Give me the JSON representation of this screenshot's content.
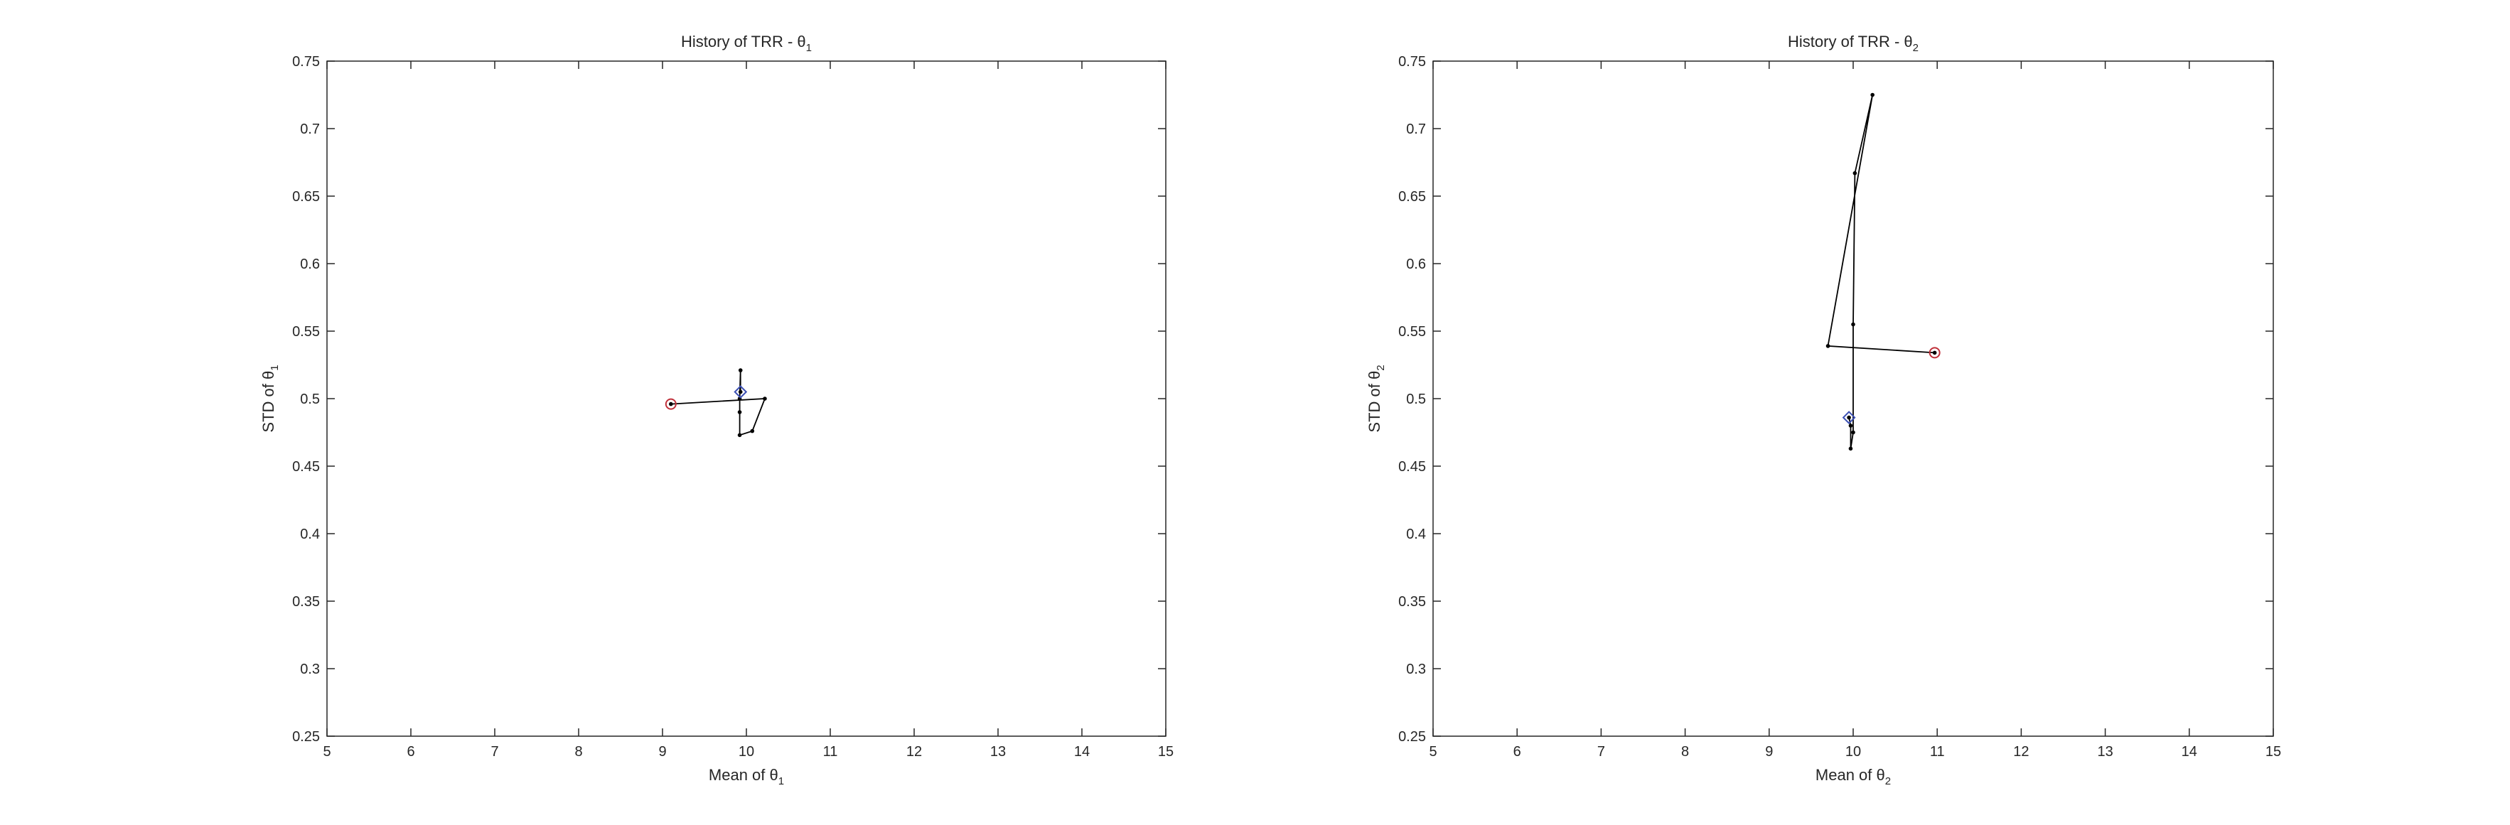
{
  "chart_data": [
    {
      "type": "line",
      "title": "History of TRR - θ",
      "title_subscript": "1",
      "xlabel": "Mean of θ",
      "xlabel_subscript": "1",
      "ylabel": "STD of θ",
      "ylabel_subscript": "1",
      "xlim": [
        5,
        15
      ],
      "ylim": [
        0.25,
        0.75
      ],
      "xticks": [
        5,
        6,
        7,
        8,
        9,
        10,
        11,
        12,
        13,
        14,
        15
      ],
      "yticks": [
        0.25,
        0.3,
        0.35,
        0.4,
        0.45,
        0.5,
        0.55,
        0.6,
        0.65,
        0.7,
        0.75
      ],
      "xtick_labels": [
        "5",
        "6",
        "7",
        "8",
        "9",
        "10",
        "11",
        "12",
        "13",
        "14",
        "15"
      ],
      "ytick_labels": [
        "0.25",
        "0.3",
        "0.35",
        "0.4",
        "0.45",
        "0.5",
        "0.55",
        "0.6",
        "0.65",
        "0.7",
        "0.75"
      ],
      "grid": false,
      "series": [
        {
          "x": [
            9.1,
            10.22,
            10.07,
            9.92,
            9.92,
            9.92,
            9.93,
            9.93
          ],
          "y": [
            0.496,
            0.5,
            0.476,
            0.473,
            0.49,
            0.5,
            0.521,
            0.505
          ],
          "color": "#000000"
        }
      ],
      "start_point": {
        "x": 9.1,
        "y": 0.496,
        "color": "#c0303a"
      },
      "end_point": {
        "x": 9.93,
        "y": 0.505,
        "color": "#3c50b4"
      }
    },
    {
      "type": "line",
      "title": "History of TRR - θ",
      "title_subscript": "2",
      "xlabel": "Mean of θ",
      "xlabel_subscript": "2",
      "ylabel": "STD of θ",
      "ylabel_subscript": "2",
      "xlim": [
        5,
        15
      ],
      "ylim": [
        0.25,
        0.75
      ],
      "xticks": [
        5,
        6,
        7,
        8,
        9,
        10,
        11,
        12,
        13,
        14,
        15
      ],
      "yticks": [
        0.25,
        0.3,
        0.35,
        0.4,
        0.45,
        0.5,
        0.55,
        0.6,
        0.65,
        0.7,
        0.75
      ],
      "xtick_labels": [
        "5",
        "6",
        "7",
        "8",
        "9",
        "10",
        "11",
        "12",
        "13",
        "14",
        "15"
      ],
      "ytick_labels": [
        "0.25",
        "0.3",
        "0.35",
        "0.4",
        "0.45",
        "0.5",
        "0.55",
        "0.6",
        "0.65",
        "0.7",
        "0.75"
      ],
      "grid": false,
      "series": [
        {
          "x": [
            10.97,
            9.7,
            10.23,
            10.02,
            10.0,
            10.0,
            9.97,
            9.97,
            9.95
          ],
          "y": [
            0.534,
            0.539,
            0.725,
            0.667,
            0.555,
            0.475,
            0.463,
            0.48,
            0.486
          ],
          "color": "#000000"
        }
      ],
      "start_point": {
        "x": 10.97,
        "y": 0.534,
        "color": "#c0303a"
      },
      "end_point": {
        "x": 9.95,
        "y": 0.486,
        "color": "#3c50b4"
      }
    }
  ]
}
